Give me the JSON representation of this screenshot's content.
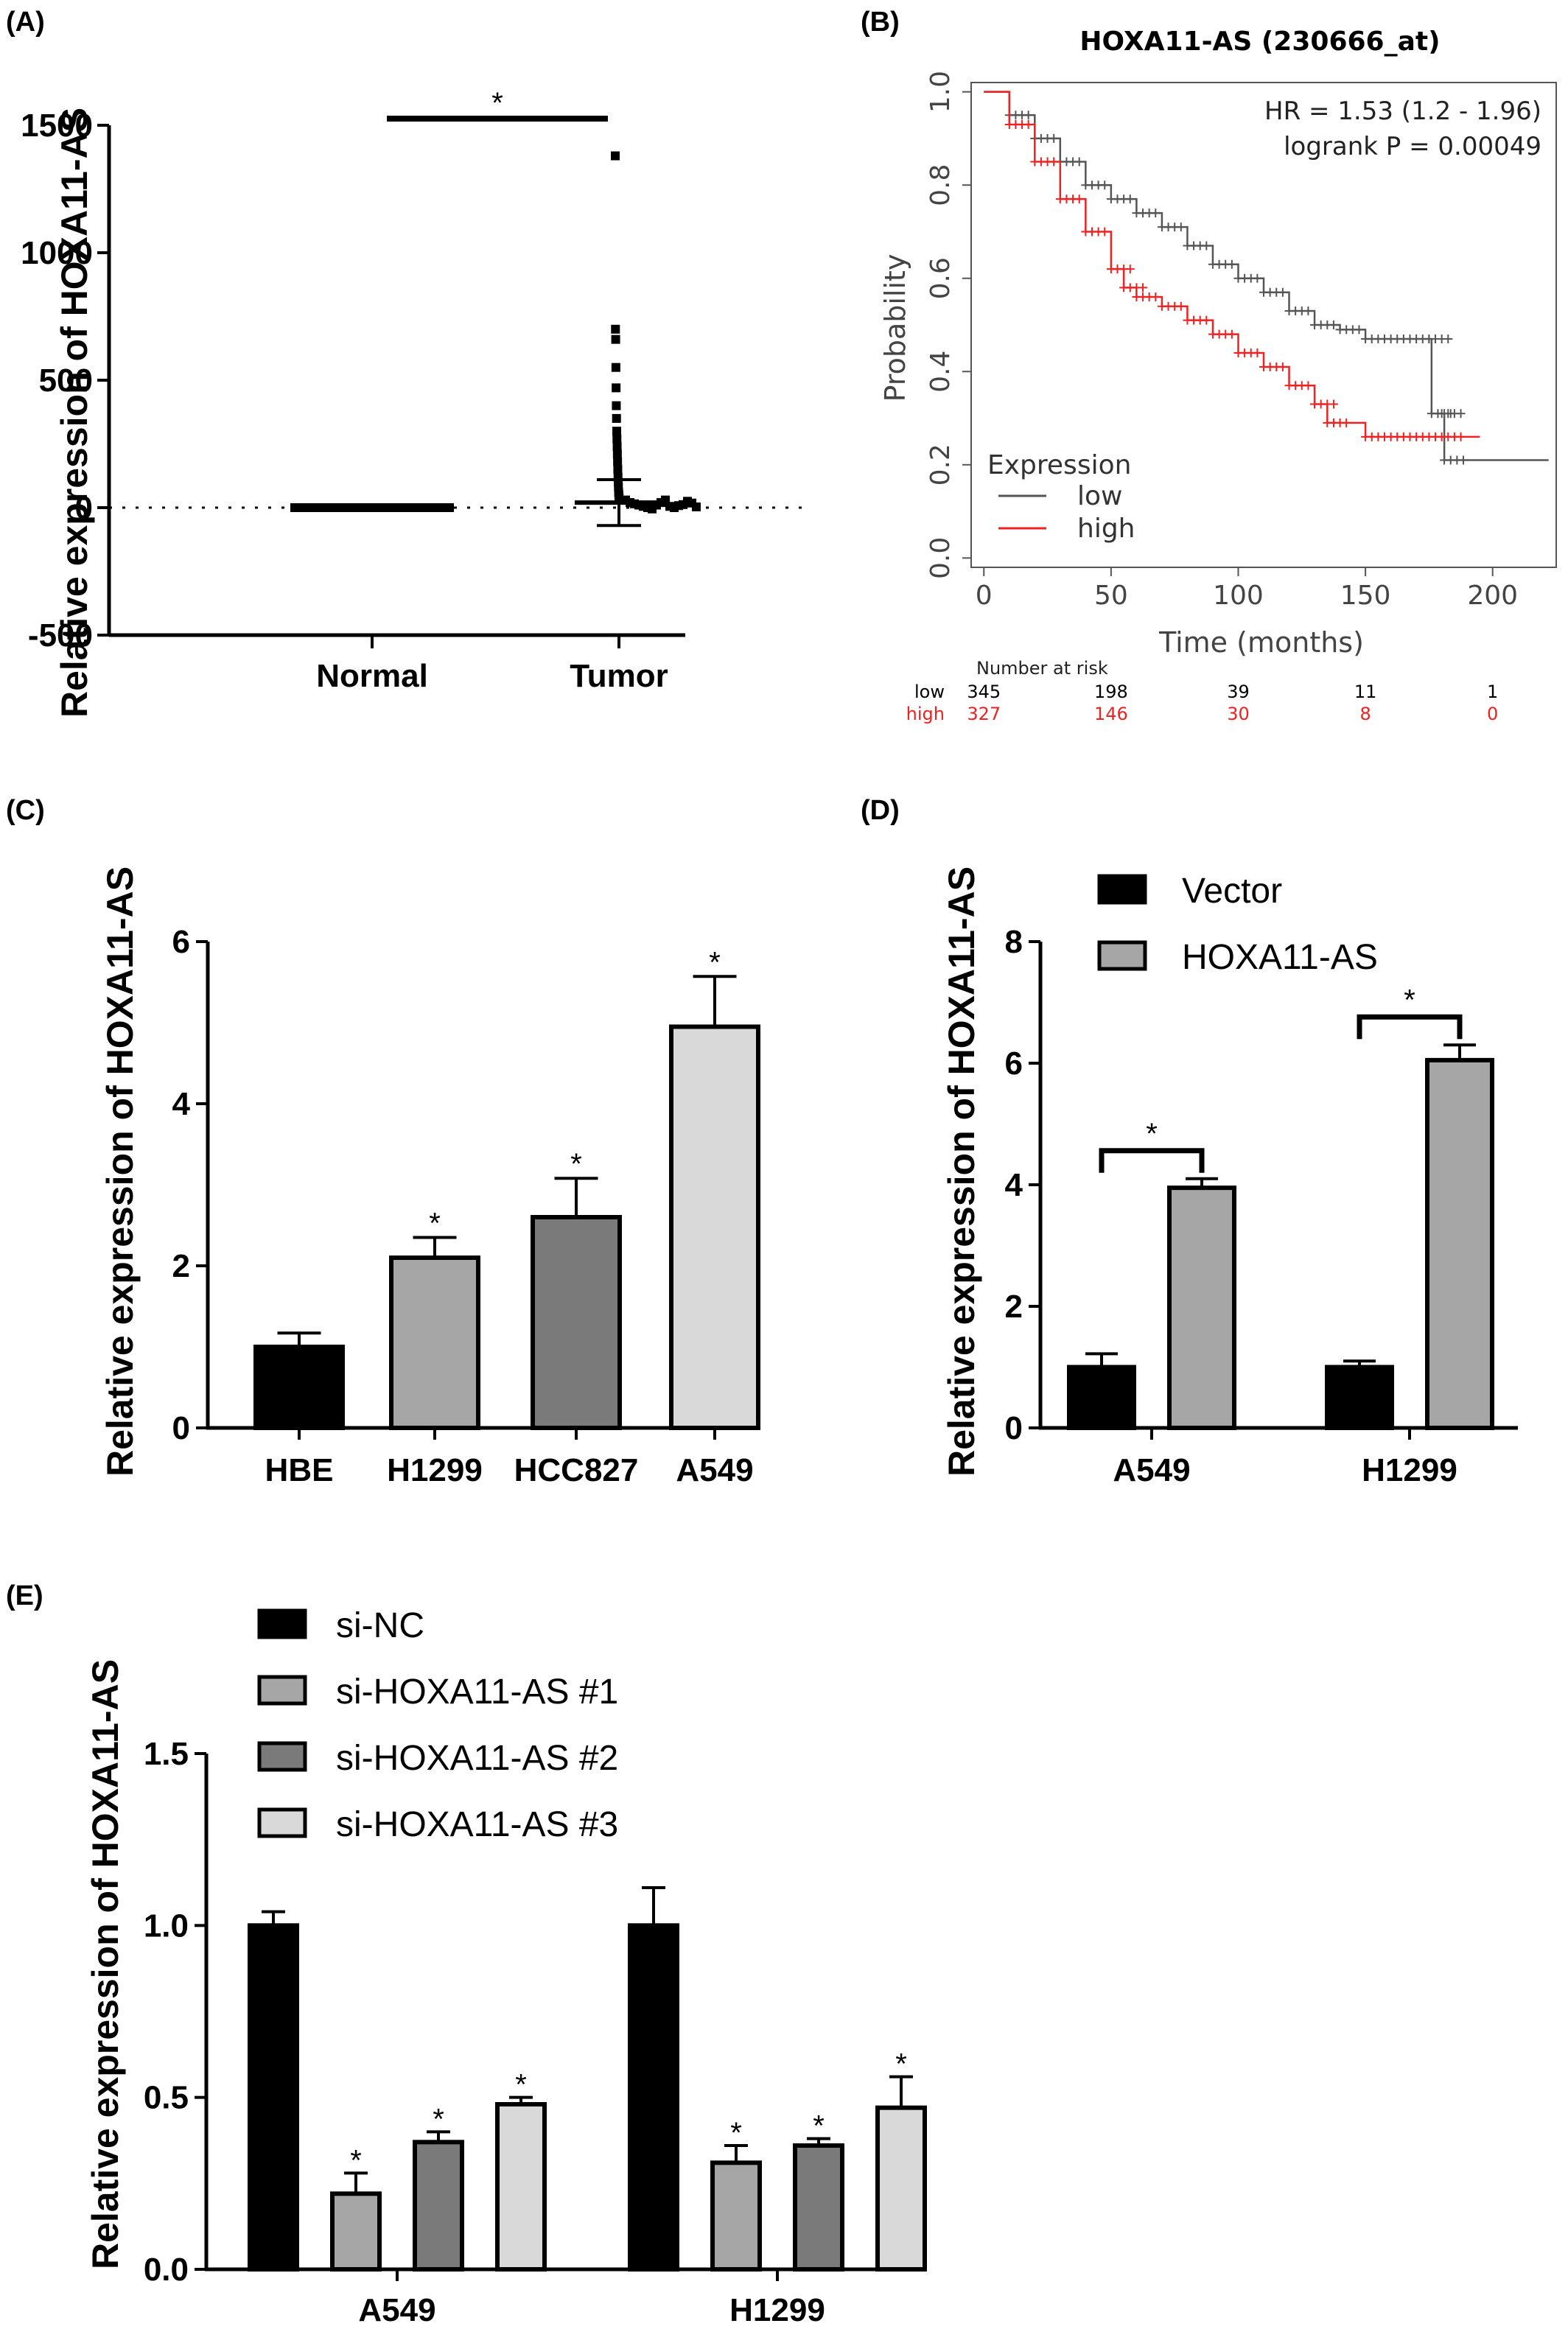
{
  "chart_data": [
    {
      "panel": "(A)",
      "type": "scatter",
      "ylabel": "Relative expression of HOXA11-AS",
      "categories": [
        "Normal",
        "Tumor"
      ],
      "yticks": [
        "1500",
        "1000",
        "500",
        "0",
        "-500"
      ],
      "ylim": [
        -500,
        1500
      ],
      "significance": "*",
      "series": [
        {
          "category": "Normal",
          "mean": 0,
          "sd": 2,
          "points": [
            0,
            0,
            0,
            0,
            0,
            0,
            0,
            0,
            0,
            0,
            0,
            0,
            0,
            0,
            0,
            0,
            0,
            0,
            0,
            0,
            0,
            0,
            0,
            0,
            0,
            0,
            0,
            0,
            0,
            0
          ]
        },
        {
          "category": "Tumor",
          "mean": 20,
          "sd": 90,
          "points": [
            1380,
            700,
            660,
            550,
            470,
            400,
            350,
            300,
            270,
            240,
            210,
            180,
            150,
            120,
            100,
            80,
            60,
            50,
            40,
            30,
            20,
            15,
            10,
            5,
            0,
            -5,
            10,
            20,
            30,
            5,
            0,
            8,
            12,
            25,
            18,
            3
          ]
        }
      ]
    },
    {
      "panel": "(B)",
      "type": "line",
      "title": "HOXA11-AS (230666_at)",
      "xlabel": "Time (months)",
      "ylabel": "Probability",
      "xticks": [
        "0",
        "50",
        "100",
        "150",
        "200"
      ],
      "yticks": [
        "1.0",
        "0.8",
        "0.6",
        "0.4",
        "0.2",
        "0.0"
      ],
      "xlim": [
        -5,
        225
      ],
      "ylim": [
        -0.02,
        1.02
      ],
      "hr_text": "HR = 1.53 (1.2 - 1.96)",
      "logrank_text": "logrank P = 0.00049",
      "legend_title": "Expression",
      "legend_position": "bottom-left",
      "series": [
        {
          "name": "low",
          "color": "#555555",
          "x": [
            0,
            10,
            20,
            30,
            40,
            50,
            60,
            70,
            80,
            90,
            100,
            110,
            120,
            130,
            140,
            150,
            160,
            170,
            175,
            176,
            180,
            181,
            222
          ],
          "y": [
            1.0,
            0.95,
            0.9,
            0.85,
            0.8,
            0.77,
            0.74,
            0.71,
            0.67,
            0.63,
            0.6,
            0.57,
            0.53,
            0.5,
            0.49,
            0.47,
            0.47,
            0.47,
            0.47,
            0.31,
            0.31,
            0.21,
            0.21
          ]
        },
        {
          "name": "high",
          "color": "#ee2222",
          "x": [
            0,
            10,
            20,
            30,
            40,
            50,
            55,
            60,
            70,
            80,
            90,
            100,
            110,
            120,
            130,
            135,
            150,
            160,
            170,
            180,
            195
          ],
          "y": [
            1.0,
            0.93,
            0.85,
            0.77,
            0.7,
            0.62,
            0.58,
            0.56,
            0.54,
            0.51,
            0.48,
            0.44,
            0.41,
            0.37,
            0.33,
            0.29,
            0.26,
            0.26,
            0.26,
            0.26,
            0.26
          ]
        }
      ],
      "risk_table": {
        "title": "Number at risk",
        "columns": [
          "0",
          "50",
          "100",
          "150",
          "200"
        ],
        "rows": [
          {
            "label": "low",
            "values": [
              "345",
              "198",
              "39",
              "11",
              "1"
            ],
            "color": "#000000"
          },
          {
            "label": "high",
            "values": [
              "327",
              "146",
              "30",
              "8",
              "0"
            ],
            "color": "#ee2222"
          }
        ]
      }
    },
    {
      "panel": "(C)",
      "type": "bar",
      "ylabel": "Relative expression of HOXA11-AS",
      "categories": [
        "HBE",
        "H1299",
        "HCC827",
        "A549"
      ],
      "values": [
        1.0,
        2.1,
        2.6,
        4.95
      ],
      "errors": [
        0.17,
        0.25,
        0.48,
        0.62
      ],
      "colors": [
        "#000000",
        "#a6a6a6",
        "#7a7a7a",
        "#d9d9d9"
      ],
      "significance": [
        "",
        "*",
        "*",
        "*"
      ],
      "yticks": [
        "0",
        "2",
        "4",
        "6"
      ],
      "ylim": [
        0,
        6
      ]
    },
    {
      "panel": "(D)",
      "type": "bar",
      "ylabel": "Relative expression of HOXA11-AS",
      "categories": [
        "A549",
        "H1299"
      ],
      "series": [
        {
          "name": "Vector",
          "values": [
            1.0,
            1.0
          ],
          "errors": [
            0.22,
            0.1
          ],
          "color": "#000000"
        },
        {
          "name": "HOXA11-AS",
          "values": [
            3.95,
            6.05
          ],
          "errors": [
            0.15,
            0.25
          ],
          "color": "#a6a6a6"
        }
      ],
      "significance": "*",
      "yticks": [
        "0",
        "2",
        "4",
        "6",
        "8"
      ],
      "ylim": [
        0,
        8
      ],
      "legend_position": "top-left"
    },
    {
      "panel": "(E)",
      "type": "bar",
      "ylabel": "Relative expression of HOXA11-AS",
      "categories": [
        "A549",
        "H1299"
      ],
      "series": [
        {
          "name": "si-NC",
          "values": [
            1.0,
            1.0
          ],
          "errors": [
            0.04,
            0.11
          ],
          "color": "#000000",
          "sig": [
            "",
            ""
          ]
        },
        {
          "name": "si-HOXA11-AS #1",
          "values": [
            0.22,
            0.31
          ],
          "errors": [
            0.06,
            0.05
          ],
          "color": "#a6a6a6",
          "sig": [
            "*",
            "*"
          ]
        },
        {
          "name": "si-HOXA11-AS #2",
          "values": [
            0.37,
            0.36
          ],
          "errors": [
            0.03,
            0.02
          ],
          "color": "#7a7a7a",
          "sig": [
            "*",
            "*"
          ]
        },
        {
          "name": "si-HOXA11-AS #3",
          "values": [
            0.48,
            0.47
          ],
          "errors": [
            0.02,
            0.09
          ],
          "color": "#d9d9d9",
          "sig": [
            "*",
            "*"
          ]
        }
      ],
      "yticks": [
        "0.0",
        "0.5",
        "1.0",
        "1.5"
      ],
      "ylim": [
        0,
        1.5
      ],
      "legend_position": "top-left"
    }
  ]
}
